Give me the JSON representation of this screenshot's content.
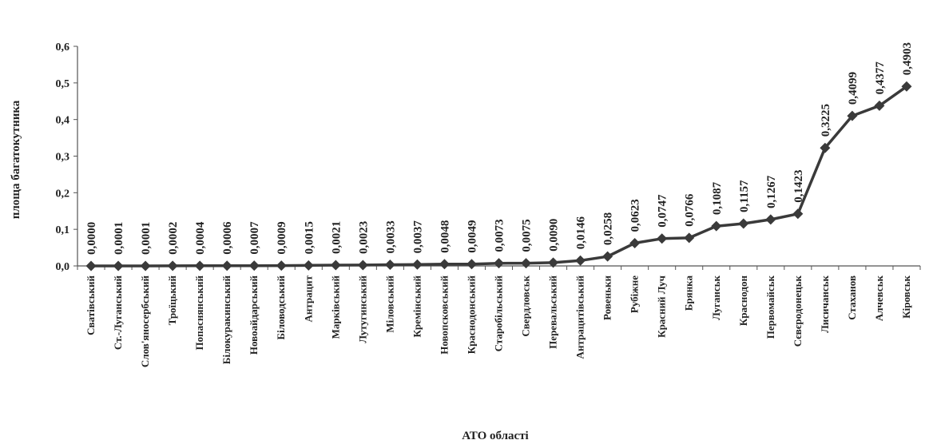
{
  "chart_data": {
    "type": "line",
    "xlabel": "АТО області",
    "ylabel": "площа багатокутника",
    "ylim": [
      0,
      0.6
    ],
    "yticks": [
      "0,0",
      "0,1",
      "0,2",
      "0,3",
      "0,4",
      "0,5",
      "0,6"
    ],
    "grid": false,
    "legend": "none",
    "marker": "diamond",
    "color": "#3a3a3a",
    "categories": [
      "Сватівський",
      "Ст.-Луганський",
      "Слов'яносербський",
      "Троїцький",
      "Попаснянський",
      "Білокуракинський",
      "Новоайдарський",
      "Біловодський",
      "Антрацит",
      "Марківський",
      "Лутугинський",
      "Міловський",
      "Кремінський",
      "Новопсковський",
      "Краснодонський",
      "Старобільський",
      "Свердловськ",
      "Перевальський",
      "Антрацитівський",
      "Ровеньки",
      "Рубіжне",
      "Красний Луч",
      "Брянка",
      "Луганськ",
      "Краснодон",
      "Первомайськ",
      "Сєвєродонецьк",
      "Лисичанськ",
      "Стаханов",
      "Алчевськ",
      "Кіровськ"
    ],
    "values": [
      0.0,
      0.0001,
      0.0001,
      0.0002,
      0.0004,
      0.0006,
      0.0007,
      0.0009,
      0.0015,
      0.0021,
      0.0023,
      0.0033,
      0.0037,
      0.0048,
      0.0049,
      0.0073,
      0.0075,
      0.009,
      0.0146,
      0.0258,
      0.0623,
      0.0747,
      0.0766,
      0.1087,
      0.1157,
      0.1267,
      0.1423,
      0.3225,
      0.4099,
      0.4377,
      0.4903
    ],
    "data_labels": [
      "0,0000",
      "0,0001",
      "0,0001",
      "0,0002",
      "0,0004",
      "0,0006",
      "0,0007",
      "0,0009",
      "0,0015",
      "0,0021",
      "0,0023",
      "0,0033",
      "0,0037",
      "0,0048",
      "0,0049",
      "0,0073",
      "0,0075",
      "0,0090",
      "0,0146",
      "0,0258",
      "0,0623",
      "0,0747",
      "0,0766",
      "0,1087",
      "0,1157",
      "0,1267",
      "0,1423",
      "0,3225",
      "0,4099",
      "0,4377",
      "0,4903"
    ]
  }
}
